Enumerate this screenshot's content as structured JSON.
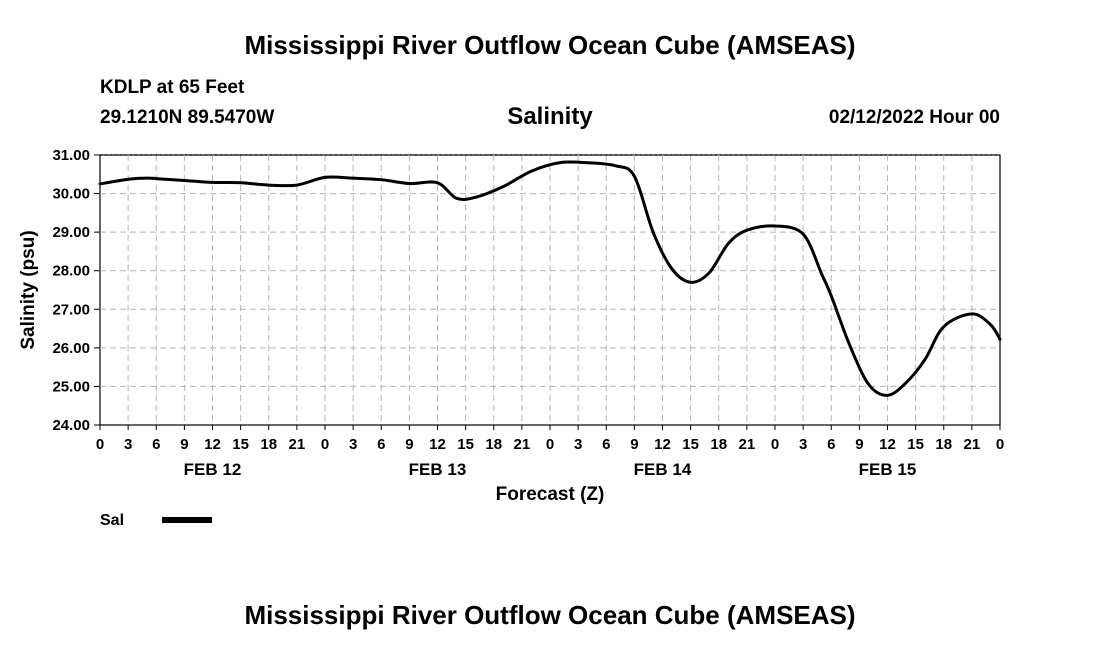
{
  "page": {
    "title_top": "Mississippi River Outflow Ocean Cube (AMSEAS)",
    "title_bottom": "Mississippi River Outflow Ocean Cube (AMSEAS)",
    "station": "KDLP at 65 Feet",
    "coords": "29.1210N  89.5470W",
    "plot_title": "Salinity",
    "run_time": "02/12/2022 Hour 00"
  },
  "chart_data": {
    "type": "line",
    "title": "Salinity",
    "xlabel": "Forecast (Z)",
    "ylabel": "Salinity (psu)",
    "ylim": [
      24.0,
      31.0
    ],
    "yticks": [
      "24.00",
      "25.00",
      "26.00",
      "27.00",
      "28.00",
      "29.00",
      "30.00",
      "31.00"
    ],
    "xlim": [
      0,
      96
    ],
    "xtick_labels": [
      "0",
      "3",
      "6",
      "9",
      "12",
      "15",
      "18",
      "21",
      "0",
      "3",
      "6",
      "9",
      "12",
      "15",
      "18",
      "21",
      "0",
      "3",
      "6",
      "9",
      "12",
      "15",
      "18",
      "21",
      "0",
      "3",
      "6",
      "9",
      "12",
      "15",
      "18",
      "21",
      "0"
    ],
    "day_labels": [
      {
        "label": "FEB 12",
        "hour": 12
      },
      {
        "label": "FEB 13",
        "hour": 36
      },
      {
        "label": "FEB 14",
        "hour": 60
      },
      {
        "label": "FEB 15",
        "hour": 84
      }
    ],
    "grid": true,
    "legend_position": "bottom-left",
    "series": [
      {
        "name": "Sal",
        "color": "#000000",
        "x": [
          0,
          3,
          5,
          7,
          9,
          12,
          15,
          18,
          21,
          24,
          27,
          30,
          33,
          36,
          38,
          40,
          43,
          46,
          49,
          52,
          55,
          57,
          59,
          61,
          63,
          65,
          67,
          69,
          72,
          75,
          77,
          78,
          80,
          82,
          84,
          86,
          88,
          90,
          93,
          95,
          96
        ],
        "values": [
          30.25,
          30.37,
          30.4,
          30.37,
          30.34,
          30.29,
          30.28,
          30.22,
          30.22,
          30.42,
          30.4,
          30.36,
          30.26,
          30.28,
          29.88,
          29.9,
          30.18,
          30.58,
          30.8,
          30.8,
          30.72,
          30.45,
          29.0,
          28.05,
          27.7,
          27.95,
          28.7,
          29.05,
          29.16,
          28.95,
          27.9,
          27.35,
          26.05,
          25.05,
          24.77,
          25.1,
          25.7,
          26.55,
          26.88,
          26.6,
          26.22
        ]
      }
    ]
  }
}
